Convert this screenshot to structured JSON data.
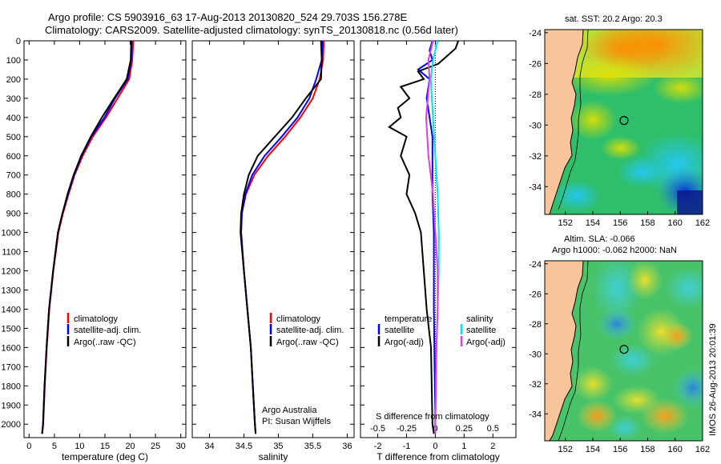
{
  "header": {
    "line1": "Argo profile: CS 5903916_63 17-Aug-2013 20130820_524 29.703S 156.278E",
    "line2": "Climatology: CARS2009. Satellite-adjusted climatology: synTS_20130818.nc (0.56d later)"
  },
  "colors": {
    "climatology": "#ff0000",
    "satellite": "#0000ff",
    "argo": "#000000",
    "sal_satellite": "#00e5ee",
    "sal_argo": "#e040e0",
    "land": "#f8c49a"
  },
  "chart_data": [
    {
      "type": "line",
      "id": "temperature",
      "xlabel": "temperature (deg C)",
      "xlim": [
        -1,
        31
      ],
      "xticks": [
        0,
        5,
        10,
        15,
        20,
        25,
        30
      ],
      "ylim": [
        2070,
        0
      ],
      "yticks": [
        0,
        100,
        200,
        300,
        400,
        500,
        600,
        700,
        800,
        900,
        1000,
        1100,
        1200,
        1300,
        1400,
        1500,
        1600,
        1700,
        1800,
        1900,
        2000
      ],
      "legend": [
        "climatology",
        "satellite-adj. clim.",
        "Argo(..raw -QC)"
      ],
      "series": [
        {
          "name": "climatology",
          "depth": [
            0,
            100,
            200,
            300,
            400,
            500,
            600,
            700,
            800,
            900,
            1000,
            1200,
            1400,
            1600,
            1800,
            2000,
            2050
          ],
          "values": [
            20.6,
            20.4,
            19.8,
            17.5,
            15.2,
            12.6,
            10.6,
            9.0,
            7.8,
            6.7,
            5.8,
            4.8,
            4.0,
            3.5,
            3.1,
            2.8,
            2.6
          ]
        },
        {
          "name": "satellite-adj. clim.",
          "depth": [
            0,
            100,
            200,
            300,
            400,
            500,
            600,
            700,
            800,
            900,
            1000,
            1200,
            1400,
            1600,
            1800,
            2000,
            2050
          ],
          "values": [
            20.3,
            20.2,
            19.5,
            17.0,
            14.9,
            12.3,
            10.4,
            8.9,
            7.7,
            6.6,
            5.7,
            4.75,
            3.95,
            3.45,
            3.05,
            2.75,
            2.55
          ]
        },
        {
          "name": "Argo(..raw -QC)",
          "depth": [
            0,
            100,
            200,
            300,
            400,
            500,
            600,
            700,
            800,
            900,
            1000,
            1200,
            1400,
            1600,
            1800,
            2000,
            2050
          ],
          "values": [
            20.2,
            20.1,
            19.3,
            16.8,
            14.4,
            12.2,
            10.3,
            8.8,
            7.6,
            6.6,
            5.7,
            4.75,
            3.95,
            3.45,
            3.05,
            2.75,
            2.6
          ]
        }
      ]
    },
    {
      "type": "line",
      "id": "salinity",
      "xlabel": "salinity",
      "xlim": [
        33.75,
        36.1
      ],
      "xticks": [
        34,
        34.5,
        35,
        35.5,
        36
      ],
      "ylim": [
        2070,
        0
      ],
      "legend": [
        "climatology",
        "satellite-adj. clim.",
        "Argo(..raw -QC)"
      ],
      "series": [
        {
          "name": "climatology",
          "depth": [
            0,
            100,
            200,
            300,
            400,
            500,
            600,
            700,
            800,
            900,
            1000,
            1200,
            1400,
            1600,
            1800,
            2000,
            2050
          ],
          "values": [
            35.66,
            35.65,
            35.6,
            35.5,
            35.32,
            35.1,
            34.85,
            34.65,
            34.53,
            34.47,
            34.46,
            34.5,
            34.55,
            34.6,
            34.63,
            34.66,
            34.67
          ]
        },
        {
          "name": "satellite-adj. clim.",
          "depth": [
            0,
            100,
            200,
            300,
            400,
            500,
            600,
            700,
            800,
            900,
            1000,
            1200,
            1400,
            1600,
            1800,
            2000,
            2050
          ],
          "values": [
            35.64,
            35.63,
            35.55,
            35.45,
            35.28,
            35.05,
            34.8,
            34.62,
            34.52,
            34.47,
            34.46,
            34.5,
            34.55,
            34.6,
            34.63,
            34.66,
            34.67
          ]
        },
        {
          "name": "Argo(..raw -QC)",
          "depth": [
            0,
            100,
            200,
            300,
            400,
            500,
            600,
            700,
            800,
            900,
            1000,
            1200,
            1400,
            1600,
            1800,
            2000,
            2050
          ],
          "values": [
            35.62,
            35.63,
            35.62,
            35.4,
            35.2,
            34.95,
            34.7,
            34.57,
            34.5,
            34.46,
            34.45,
            34.5,
            34.55,
            34.6,
            34.63,
            34.66,
            34.67
          ]
        }
      ],
      "annotation": [
        "Argo Australia",
        "PI: Susan Wijffels"
      ]
    },
    {
      "type": "line",
      "id": "difference",
      "xlabel": "T difference from climatology",
      "xlim": [
        -2.6,
        2.8
      ],
      "xticks": [
        -2,
        -1,
        0,
        1,
        2
      ],
      "top_xlabel": "S difference from climatology",
      "top_xticks": [
        "-0.5",
        "-0.25",
        "0",
        "0.25",
        "0.5"
      ],
      "ylim": [
        2070,
        0
      ],
      "legend_temperature": [
        "temperature",
        "satellite",
        "Argo(-adj)"
      ],
      "legend_salinity": [
        "salinity",
        "satellite",
        "Argo(-adj)"
      ],
      "series": [
        {
          "name": "T satellite",
          "depth": [
            0,
            50,
            100,
            150,
            200,
            300,
            400,
            500,
            600,
            800,
            1000,
            1400,
            2000,
            2050
          ],
          "values": [
            -0.1,
            -0.2,
            -0.1,
            -0.6,
            -0.2,
            -0.3,
            -0.2,
            -0.1,
            -0.1,
            -0.1,
            -0.05,
            -0.05,
            0,
            0
          ]
        },
        {
          "name": "T Argo(-adj)",
          "depth": [
            0,
            40,
            80,
            120,
            160,
            200,
            240,
            300,
            350,
            400,
            450,
            500,
            600,
            700,
            800,
            900,
            1000,
            1200,
            1400,
            1600,
            2000,
            2050
          ],
          "values": [
            0.8,
            0.7,
            0.4,
            0.1,
            -0.6,
            -0.4,
            -1.2,
            -0.9,
            -1.3,
            -1.2,
            -1.6,
            -1.0,
            -1.2,
            -0.9,
            -1.0,
            -0.7,
            -0.5,
            -0.4,
            -0.3,
            -0.15,
            -0.1,
            -0.05
          ]
        },
        {
          "name": "S satellite",
          "depth": [
            0,
            100,
            200,
            400,
            600,
            800,
            1000,
            1200,
            1400,
            1600,
            2000,
            2050
          ],
          "values": [
            0.02,
            -0.02,
            -0.04,
            -0.02,
            0,
            0.02,
            0.03,
            0.03,
            0.02,
            0.01,
            0,
            0
          ]
        },
        {
          "name": "S Argo(-adj)",
          "depth": [
            0,
            100,
            200,
            400,
            600,
            800,
            1000,
            1200,
            1400,
            1600,
            2000,
            2050
          ],
          "values": [
            -0.02,
            -0.06,
            -0.05,
            -0.08,
            -0.06,
            -0.02,
            0,
            0.02,
            0.02,
            0.01,
            0,
            0
          ]
        }
      ]
    },
    {
      "type": "heatmap",
      "id": "sst-map",
      "title": "sat. SST: 20.2  Argo: 20.3",
      "xlim": [
        150.5,
        162
      ],
      "ylim": [
        -35.8,
        -23.8
      ],
      "xticks": [
        152,
        154,
        156,
        158,
        160,
        162
      ],
      "yticks": [
        -24,
        -26,
        -28,
        -30,
        -32,
        -34
      ],
      "float_position": [
        156.278,
        -29.703
      ]
    },
    {
      "type": "heatmap",
      "id": "sla-map",
      "title": "Altim. SLA: -0.066",
      "subtitle": "Argo h1000: -0.062 h2000: NaN",
      "xlim": [
        150.5,
        162
      ],
      "ylim": [
        -35.8,
        -23.8
      ],
      "xticks": [
        152,
        154,
        156,
        158,
        160,
        162
      ],
      "yticks": [
        -24,
        -26,
        -28,
        -30,
        -32,
        -34
      ],
      "float_position": [
        156.278,
        -29.703
      ]
    }
  ],
  "footer": {
    "stamp": "IMOS 26-Aug-2013 20:01:39"
  }
}
